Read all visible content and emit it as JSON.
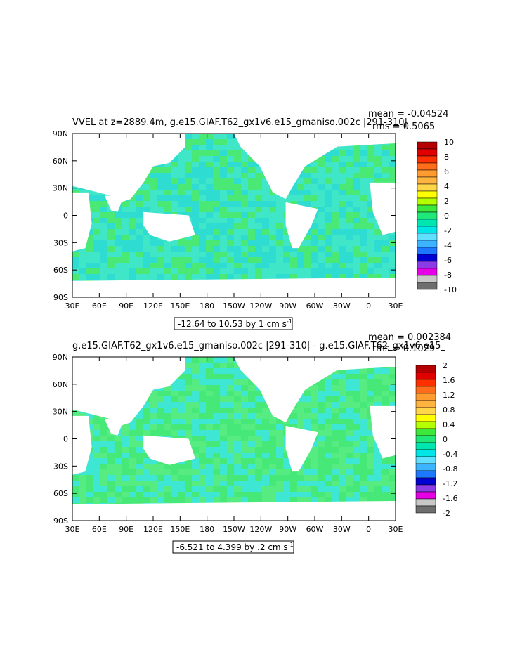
{
  "chart_data": [
    {
      "type": "heatmap",
      "title": "VVEL at z=2889.4m, g.e15.GIAF.T62_gx1v6.e15_gmaniso.002c |291-310|",
      "stats": {
        "mean": "mean = -0.04524",
        "rms": "rms = 0.5065"
      },
      "range_label": "-12.64 to 10.53 by 1 cm s",
      "range_unit_sup": "-1",
      "x_ticks": [
        "30E",
        "60E",
        "90E",
        "120E",
        "150E",
        "180",
        "150W",
        "120W",
        "90W",
        "60W",
        "30W",
        "0",
        "30E"
      ],
      "y_ticks": [
        "90N",
        "60N",
        "30N",
        "0",
        "30S",
        "60S",
        "90S"
      ],
      "colorbar": {
        "labels": [
          "10",
          "8",
          "6",
          "4",
          "2",
          "0",
          "-2",
          "-4",
          "-6",
          "-8",
          "-10"
        ],
        "colors": [
          "#b40000",
          "#e00000",
          "#ff3000",
          "#ff6c1a",
          "#ff9c30",
          "#ffb440",
          "#ffd64a",
          "#ffff00",
          "#b4ff00",
          "#3ce83c",
          "#20e878",
          "#00e6b0",
          "#00e6e6",
          "#60e0ff",
          "#3cb4ff",
          "#1e78ff",
          "#0000d2",
          "#8c3ce6",
          "#e600e6",
          "#c8c8c8",
          "#6e6e6e"
        ]
      },
      "field_colors": [
        "#3fe6c8",
        "#4ae874",
        "#2edcd2"
      ]
    },
    {
      "type": "heatmap",
      "title": "g.e15.GIAF.T62_gx1v6.e15_gmaniso.002c |291-310| - g.e15.GIAF.T62_gx1v6.e15_",
      "stats": {
        "mean": "mean = 0.002384",
        "rms": "rms = 0.1029"
      },
      "range_label": "-6.521 to 4.399 by .2 cm s",
      "range_unit_sup": "-1",
      "x_ticks": [
        "30E",
        "60E",
        "90E",
        "120E",
        "150E",
        "180",
        "150W",
        "120W",
        "90W",
        "60W",
        "30W",
        "0",
        "30E"
      ],
      "y_ticks": [
        "90N",
        "60N",
        "30N",
        "0",
        "30S",
        "60S",
        "90S"
      ],
      "colorbar": {
        "labels": [
          "2",
          "1.6",
          "1.2",
          "0.8",
          "0.4",
          "0",
          "-0.4",
          "-0.8",
          "-1.2",
          "-1.6",
          "-2"
        ],
        "colors": [
          "#b40000",
          "#e00000",
          "#ff3000",
          "#ff6c1a",
          "#ff9c30",
          "#ffb440",
          "#ffd64a",
          "#ffff00",
          "#b4ff00",
          "#3ce83c",
          "#20e878",
          "#00e6b0",
          "#00e6e6",
          "#60e0ff",
          "#3cb4ff",
          "#1e78ff",
          "#0000d2",
          "#8c3ce6",
          "#e600e6",
          "#c8c8c8",
          "#6e6e6e"
        ]
      },
      "field_colors": [
        "#46e878",
        "#3ee6d4",
        "#56ec82"
      ]
    }
  ]
}
